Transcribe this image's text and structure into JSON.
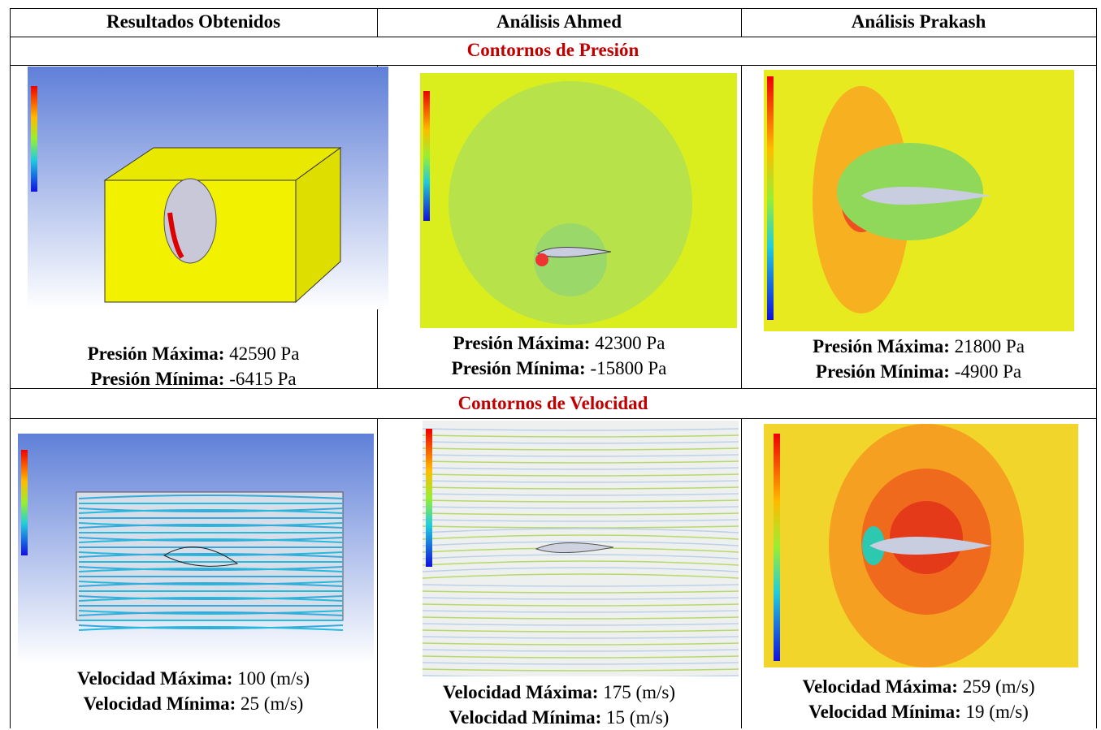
{
  "header": [
    "Resultados Obtenidos",
    "Análisis Ahmed",
    "Análisis Prakash"
  ],
  "sections": [
    {
      "title": "Contornos de Presión",
      "cells": [
        [
          {
            "label": "Presión Máxima:",
            "value": "42590 Pa"
          },
          {
            "label": "Presión Mínima:",
            "value": "-6415 Pa"
          }
        ],
        [
          {
            "label": "Presión Máxima:",
            "value": "42300 Pa"
          },
          {
            "label": "Presión Mínima:",
            "value": "-15800 Pa"
          }
        ],
        [
          {
            "label": "Presión Máxima:",
            "value": "21800 Pa"
          },
          {
            "label": "Presión Mínima:",
            "value": "-4900 Pa"
          }
        ]
      ]
    },
    {
      "title": "Contornos de Velocidad",
      "cells": [
        [
          {
            "label": "Velocidad Máxima:",
            "value": "100 (m/s)"
          },
          {
            "label": "Velocidad Mínima:",
            "value": "25 (m/s)"
          }
        ],
        [
          {
            "label": "Velocidad Máxima:",
            "value": "175 (m/s)"
          },
          {
            "label": "Velocidad Mínima:",
            "value": "15 (m/s)"
          }
        ],
        [
          {
            "label": "Velocidad Máxima:",
            "value": "259 (m/s)"
          },
          {
            "label": "Velocidad Mínima:",
            "value": "19 (m/s)"
          }
        ]
      ]
    }
  ]
}
